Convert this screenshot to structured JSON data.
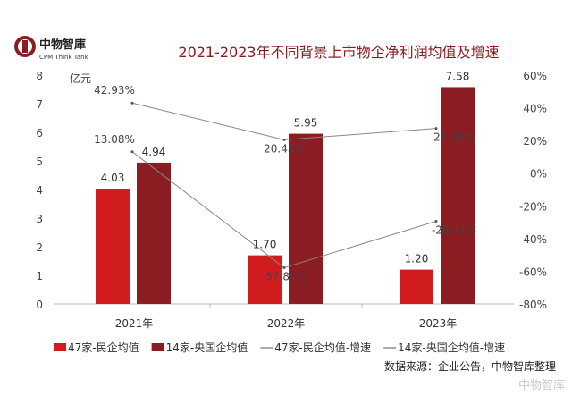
{
  "brand": {
    "name": "中物智庫",
    "sub": "CPM Think Tank",
    "watermark": "中物智库"
  },
  "colors": {
    "private": "#d01c1f",
    "central": "#8b1c22",
    "title": "#8b1c22",
    "line": "#888888"
  },
  "chart_data": {
    "type": "bar",
    "title": "2021-2023年不同背景上市物企净利润均值及增速",
    "ylabel": "亿元",
    "categories": [
      "2021年",
      "2022年",
      "2023年"
    ],
    "ylim": [
      0,
      8
    ],
    "yticks": [
      "0",
      "1",
      "2",
      "3",
      "4",
      "5",
      "6",
      "7",
      "8"
    ],
    "y2lim": [
      -80,
      60
    ],
    "y2ticks": [
      "-80%",
      "-60%",
      "-40%",
      "-20%",
      "0%",
      "20%",
      "40%",
      "60%"
    ],
    "series": [
      {
        "name": "47家-民企均值",
        "kind": "bar",
        "values": [
          4.03,
          1.7,
          1.2
        ],
        "labels": [
          "4.03",
          "1.70",
          "1.20"
        ]
      },
      {
        "name": "14家-央国企均值",
        "kind": "bar",
        "values": [
          4.94,
          5.95,
          7.58
        ],
        "labels": [
          "4.94",
          "5.95",
          "7.58"
        ]
      },
      {
        "name": "47家-民企均值-增速",
        "kind": "line",
        "axis": "right",
        "values": [
          13.08,
          -57.82,
          -29.41
        ],
        "labels": [
          "13.08%",
          "-57.82%",
          "-29.41%"
        ]
      },
      {
        "name": "14家-央国企均值-增速",
        "kind": "line",
        "axis": "right",
        "values": [
          42.93,
          20.45,
          27.4
        ],
        "labels": [
          "42.93%",
          "20.45%",
          "27.40%"
        ]
      }
    ],
    "legend": "bottom",
    "source": "数据来源：企业公告，中物智库整理"
  }
}
